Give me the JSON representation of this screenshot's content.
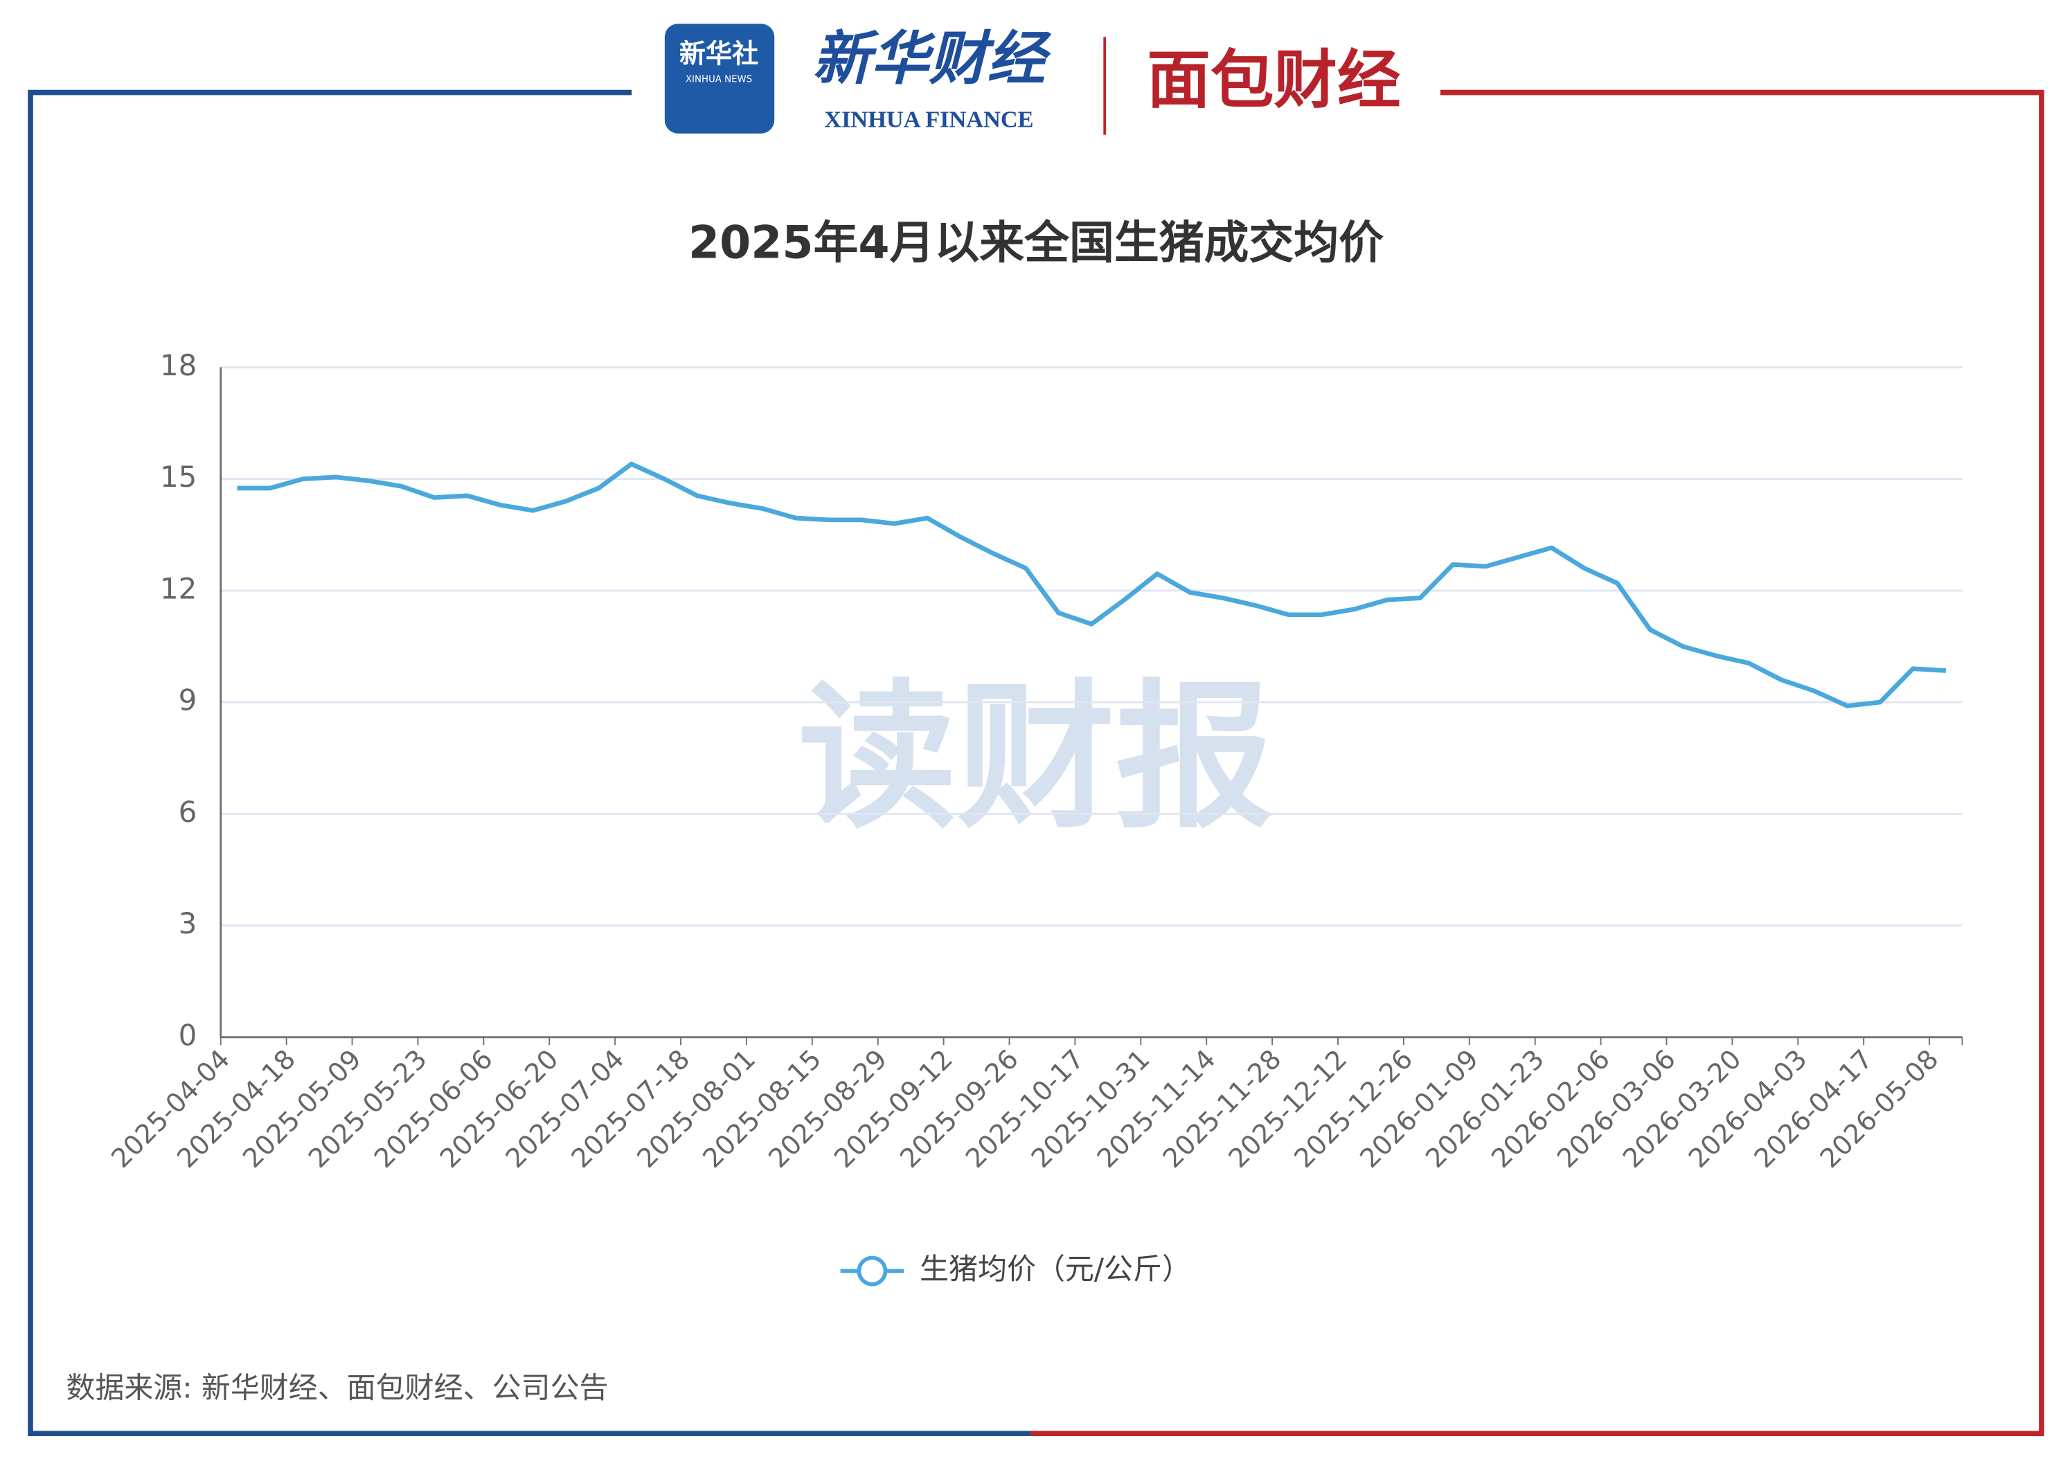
{
  "header": {
    "xinhua_logo": "新华社",
    "xinhua_logo_en": "XINHUA NEWS",
    "finance_logo": "新华财经",
    "finance_logo_en": "XINHUA FINANCE",
    "mianbao_logo": "面包财经"
  },
  "watermark": "读财报",
  "source": "数据来源: 新华财经、面包财经、公司公告",
  "chart_data": {
    "type": "line",
    "title": "2025年4月以来全国生猪成交均价",
    "categories": [
      "2025-04-04",
      null,
      "2025-04-18",
      null,
      "2025-05-09",
      null,
      "2025-05-23",
      null,
      "2025-06-06",
      null,
      "2025-06-20",
      null,
      "2025-07-04",
      null,
      "2025-07-18",
      null,
      "2025-08-01",
      null,
      "2025-08-15",
      null,
      "2025-08-29",
      null,
      "2025-09-12",
      null,
      "2025-09-26",
      null,
      "2025-10-17",
      null,
      "2025-10-31",
      null,
      "2025-11-14",
      null,
      "2025-11-28",
      null,
      "2025-12-12",
      null,
      "2025-12-26",
      null,
      "2026-01-09",
      null,
      "2026-01-23",
      null,
      "2026-02-06",
      null,
      "2026-03-06",
      null,
      "2026-03-20",
      null,
      "2026-04-03",
      null,
      "2026-04-17",
      null,
      "2026-05-08"
    ],
    "series": [
      {
        "name": "生猪均价（元/公斤）",
        "color": "#4aa8dc",
        "values": [
          14.75,
          14.75,
          15.0,
          15.05,
          14.95,
          14.8,
          14.5,
          14.55,
          14.3,
          14.15,
          14.4,
          14.75,
          15.4,
          15.0,
          14.55,
          14.35,
          14.2,
          13.95,
          13.9,
          13.9,
          13.8,
          13.95,
          13.45,
          13.0,
          12.6,
          11.4,
          11.1,
          11.75,
          12.45,
          11.95,
          11.8,
          11.6,
          11.35,
          11.35,
          11.5,
          11.75,
          11.8,
          12.7,
          12.65,
          12.9,
          13.15,
          12.6,
          12.2,
          10.95,
          10.5,
          10.25,
          10.05,
          9.6,
          9.3,
          8.9,
          9.0,
          9.9,
          9.85
        ]
      }
    ],
    "ylim": [
      0,
      18
    ],
    "yticks": [
      0,
      3,
      6,
      9,
      12,
      15,
      18
    ],
    "grid": true
  }
}
